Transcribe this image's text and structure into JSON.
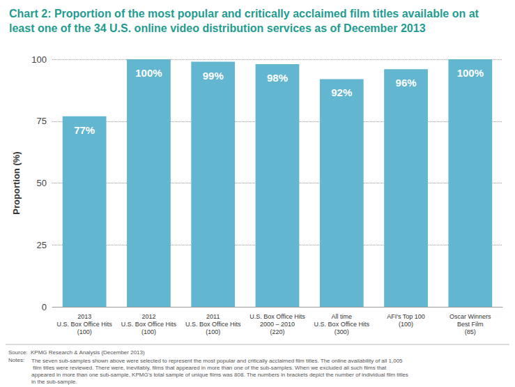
{
  "chart_data": {
    "type": "bar",
    "title": "Chart 2: Proportion of the most popular and critically acclaimed film titles available on at least one of the 34 U.S. online video distribution services as of December 2013",
    "y_label": "Proportion (%)",
    "categories": [
      "2013\nU.S. Box Office Hits\n(100)",
      "2012\nU.S. Box Office Hits\n(100)",
      "2011\nU.S. Box Office Hits\n(100)",
      "U.S. Box Office Hits\n2000 – 2010\n(220)",
      "All time\nU.S. Box Office Hits\n(300)",
      "AFI's Top 100\n(100)",
      "Oscar Winners\nBest Film\n(85)"
    ],
    "values": [
      77,
      100,
      99,
      98,
      92,
      96,
      100
    ],
    "value_labels": [
      "77%",
      "100%",
      "99%",
      "98%",
      "92%",
      "96%",
      "100%"
    ],
    "data_labels": true,
    "color": "#62b6cf",
    "ylim": [
      0,
      100
    ],
    "yticks": [
      0,
      25,
      50,
      75,
      100
    ],
    "grid": true,
    "source": "Source:  KPMG Research & Analysis (December 2013)",
    "notes_label": "Notes:",
    "notes": "The seven sub-samples shown above were selected to represent the most popular and critically acclaimed film titles. The online availability of all 1,005 film titles were reviewed. There were, inevitably, films that appeared in more than one of the sub-samples. When we excluded all such films that appeared in more than one sub-sample, KPMG's total sample of unique films was 808. The numbers in brackets depict the number of individual film titles in the sub-sample."
  }
}
